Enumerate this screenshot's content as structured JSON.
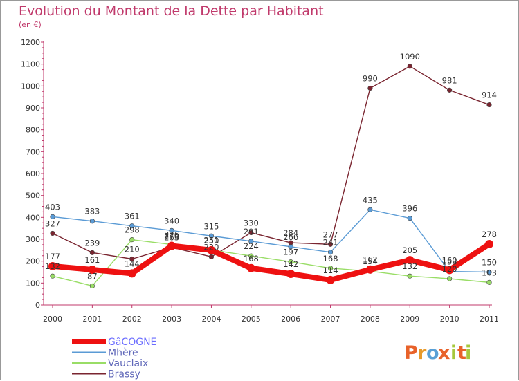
{
  "chart_data": {
    "type": "line",
    "title": "Evolution du Montant de la Dette par Habitant",
    "subtitle": "(en €)",
    "xlabel": "",
    "ylabel": "",
    "x": [
      "2000",
      "2001",
      "2002",
      "2003",
      "2004",
      "2005",
      "2006",
      "2007",
      "2008",
      "2009",
      "2010",
      "2011"
    ],
    "ylim": [
      0,
      1200
    ],
    "yticks": [
      0,
      100,
      200,
      300,
      400,
      500,
      600,
      700,
      800,
      900,
      1000,
      1100,
      1200
    ],
    "grid": false,
    "legend_position": "bottom-left",
    "series": [
      {
        "name": "Brassy",
        "color": "#7a2530",
        "values": [
          327,
          239,
          210,
          263,
          220,
          330,
          284,
          277,
          990,
          1090,
          981,
          914
        ]
      },
      {
        "name": "Mhère",
        "color": "#5b9bd5",
        "values": [
          403,
          383,
          361,
          340,
          315,
          291,
          266,
          241,
          435,
          396,
          153,
          150
        ]
      },
      {
        "name": "Vauclaix",
        "color": "#99dd66",
        "values": [
          132,
          87,
          298,
          276,
          251,
          224,
          197,
          168,
          154,
          132,
          120,
          103
        ]
      },
      {
        "name": "GâCOGNE",
        "color": "#ee1111",
        "values": [
          177,
          161,
          144,
          270,
          250,
          168,
          142,
          114,
          162,
          205,
          160,
          278
        ]
      }
    ],
    "series_order_legend": [
      "GâCOGNE",
      "Mhère",
      "Vauclaix",
      "Brassy"
    ]
  },
  "logo": {
    "letters": [
      "P",
      "r",
      "o",
      "x",
      "i",
      "t",
      "i"
    ],
    "colors": [
      "#e8622a",
      "#e89a2a",
      "#5aa0d6",
      "#e8622a",
      "#a6c83c",
      "#e8622a",
      "#a6c83c"
    ]
  }
}
